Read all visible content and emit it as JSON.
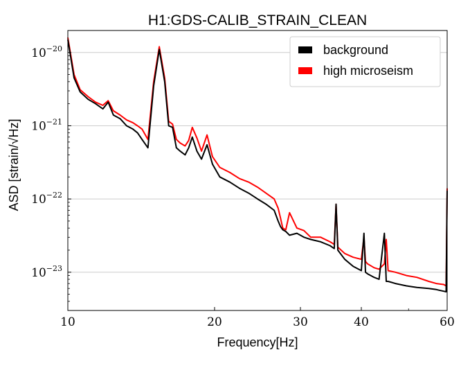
{
  "chart_data": {
    "type": "line",
    "title": "H1:GDS-CALIB_STRAIN_CLEAN",
    "xlabel": "Frequency[Hz]",
    "ylabel": "ASD [strain/√Hz]",
    "xscale": "log",
    "yscale": "log",
    "xlim": [
      10,
      60
    ],
    "ylim": [
      3e-24,
      2e-20
    ],
    "x_ticks": [
      {
        "value": 10,
        "label": "10"
      },
      {
        "value": 20,
        "label": "20"
      },
      {
        "value": 30,
        "label": "30"
      },
      {
        "value": 40,
        "label": "40"
      },
      {
        "value": 60,
        "label": "60"
      }
    ],
    "y_ticks": [
      {
        "value": 1e-20,
        "base": "10",
        "exp": "−20"
      },
      {
        "value": 1e-21,
        "base": "10",
        "exp": "−21"
      },
      {
        "value": 1e-22,
        "base": "10",
        "exp": "−22"
      },
      {
        "value": 1e-23,
        "base": "10",
        "exp": "−23"
      }
    ],
    "grid": "horizontal",
    "legend_position": "top-right",
    "series": [
      {
        "name": "high microseism",
        "color": "#ff0000",
        "x": [
          10,
          10.3,
          10.6,
          11,
          11.4,
          11.8,
          12.1,
          12.4,
          12.8,
          13.2,
          13.6,
          13.9,
          14.2,
          14.6,
          15,
          15.4,
          15.8,
          16.1,
          16.4,
          16.7,
          17,
          17.4,
          17.7,
          18,
          18.4,
          18.8,
          19.3,
          19.8,
          20.5,
          21.5,
          22.5,
          23.5,
          24.5,
          25.5,
          26.5,
          27,
          27.3,
          27.6,
          28,
          28.5,
          29.5,
          30.5,
          31.5,
          33,
          34.5,
          35.2,
          35.5,
          35.8,
          37,
          38.5,
          40,
          40.5,
          40.8,
          41.2,
          42.5,
          43.5,
          44.6,
          45,
          45.4,
          47,
          49.5,
          52,
          55,
          57,
          59,
          59.7,
          60
        ],
        "y": [
          1.6e-20,
          5e-21,
          3.1e-21,
          2.5e-21,
          2.1e-21,
          1.9e-21,
          2.2e-21,
          1.6e-21,
          1.4e-21,
          1.2e-21,
          1.1e-21,
          1e-21,
          9e-22,
          6.5e-22,
          4e-21,
          1.2e-20,
          4.5e-21,
          1.15e-21,
          1.05e-21,
          6.5e-22,
          5.8e-22,
          5.3e-22,
          6.3e-22,
          9.5e-22,
          6.8e-22,
          4.5e-22,
          7.5e-22,
          3.8e-22,
          2.7e-22,
          2.3e-22,
          1.9e-22,
          1.7e-22,
          1.45e-22,
          1.2e-22,
          1e-22,
          7.5e-23,
          5.5e-23,
          4e-23,
          3.8e-23,
          6.5e-23,
          4e-23,
          3.7e-23,
          3e-23,
          3e-23,
          2.6e-23,
          2.4e-23,
          8.5e-23,
          2.2e-23,
          1.8e-23,
          1.6e-23,
          1.5e-23,
          3e-23,
          1.4e-23,
          1.3e-23,
          1.15e-23,
          1.1e-23,
          1.3e-23,
          2.8e-23,
          1.05e-23,
          1e-23,
          9e-24,
          8.5e-24,
          7.5e-24,
          7e-24,
          6.8e-24,
          6.5e-24,
          1.4e-22
        ]
      },
      {
        "name": "background",
        "color": "#000000",
        "x": [
          10,
          10.3,
          10.6,
          11,
          11.4,
          11.8,
          12.1,
          12.4,
          12.8,
          13.2,
          13.6,
          13.9,
          14.2,
          14.6,
          15,
          15.4,
          15.8,
          16.1,
          16.4,
          16.7,
          17,
          17.4,
          17.7,
          18,
          18.4,
          18.8,
          19.3,
          19.8,
          20.5,
          21.5,
          22.5,
          23.5,
          24.5,
          25.5,
          26.5,
          27,
          27.3,
          27.6,
          28,
          28.5,
          29.5,
          30.5,
          31.5,
          33,
          34.5,
          35.2,
          35.5,
          35.8,
          37,
          38.5,
          40,
          40.5,
          40.8,
          41.2,
          42.5,
          43.5,
          44.6,
          45,
          45.4,
          47,
          49.5,
          52,
          55,
          57,
          59,
          59.7,
          60
        ],
        "y": [
          1.5e-20,
          4.5e-21,
          2.9e-21,
          2.3e-21,
          2e-21,
          1.7e-21,
          2.1e-21,
          1.4e-21,
          1.25e-21,
          1e-21,
          9e-22,
          8e-22,
          6.5e-22,
          5e-22,
          3.5e-21,
          1.1e-20,
          4e-21,
          1e-21,
          9.5e-22,
          5e-22,
          4.5e-22,
          4e-22,
          5e-22,
          7e-22,
          4.5e-22,
          3.5e-22,
          5.5e-22,
          3e-22,
          2e-22,
          1.7e-22,
          1.4e-22,
          1.2e-22,
          1e-22,
          8.5e-23,
          7e-23,
          5e-23,
          4.2e-23,
          3.8e-23,
          3.6e-23,
          3.2e-23,
          3.4e-23,
          3e-23,
          2.8e-23,
          2.6e-23,
          2.3e-23,
          2.1e-23,
          8.5e-23,
          2e-23,
          1.5e-23,
          1.2e-23,
          1.05e-23,
          3.4e-23,
          1e-23,
          9.5e-24,
          8.5e-24,
          8e-24,
          3.4e-23,
          7.5e-24,
          7.5e-24,
          7e-24,
          6.5e-24,
          6.2e-24,
          6e-24,
          5.8e-24,
          5.5e-24,
          5.4e-24,
          1.3e-22
        ]
      }
    ],
    "legend": [
      {
        "label": "background",
        "color": "#000000"
      },
      {
        "label": "high microseism",
        "color": "#ff0000"
      }
    ]
  }
}
